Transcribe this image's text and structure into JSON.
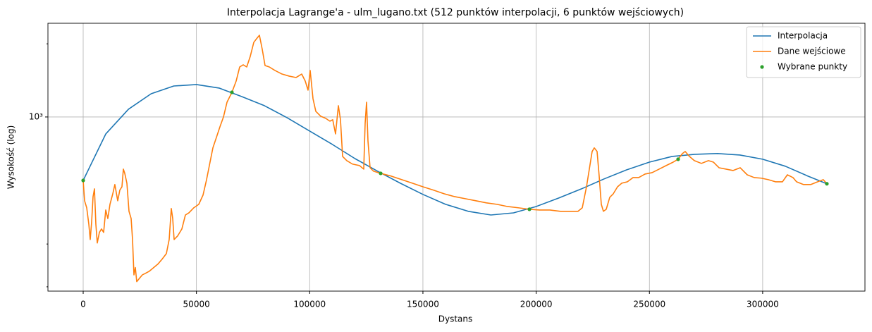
{
  "chart_data": {
    "type": "line",
    "title": "Interpolacja Lagrange'a - ulm_lugano.txt (512 punktów interpolacji, 6 punktów wejściowych)",
    "x_label": "Dystans",
    "y_label": "Wysokość (log)",
    "log_y": true,
    "grid": true,
    "legend": "upper right",
    "xlim": [
      -15560,
      345160
    ],
    "ylim": [
      192,
      2430
    ],
    "xticks": [
      0,
      50000,
      100000,
      150000,
      200000,
      250000,
      300000
    ],
    "yticks": [
      {
        "value": 1000,
        "label": "10³"
      }
    ],
    "yminorticks": [
      200,
      300,
      2000
    ],
    "series": [
      {
        "name": "Interpolacja",
        "color": "#1f77b4",
        "style": "line",
        "x": [
          0,
          10000,
          20000,
          30000,
          40000,
          50000,
          60000,
          70000,
          80000,
          90000,
          100000,
          110000,
          120000,
          130000,
          140000,
          150000,
          160000,
          170000,
          180000,
          190000,
          200000,
          210000,
          220000,
          230000,
          240000,
          250000,
          260000,
          270000,
          280000,
          290000,
          300000,
          310000,
          320000,
          328350
        ],
        "values": [
          548,
          852,
          1076,
          1246,
          1341,
          1360,
          1315,
          1213,
          1113,
          993,
          875,
          771,
          674,
          598,
          534,
          480,
          437,
          409,
          395,
          403,
          428,
          464,
          506,
          556,
          606,
          652,
          688,
          702,
          707,
          697,
          670,
          627,
          571,
          531
        ]
      },
      {
        "name": "Dane wejściowe",
        "color": "#ff7f0e",
        "style": "line",
        "x": [
          0,
          620,
          1560,
          2490,
          3110,
          3740,
          4360,
          4980,
          5600,
          6220,
          7160,
          8090,
          9030,
          9960,
          10890,
          11830,
          13070,
          13990,
          15250,
          16180,
          17120,
          17740,
          18360,
          19300,
          20230,
          21170,
          21790,
          22410,
          23030,
          23650,
          24900,
          26140,
          27390,
          29260,
          31120,
          32990,
          34860,
          36730,
          37970,
          38900,
          39530,
          40150,
          41710,
          43570,
          45130,
          46690,
          48860,
          51040,
          52910,
          54470,
          55710,
          57270,
          58830,
          60380,
          61940,
          63500,
          65670,
          67540,
          69100,
          70650,
          72210,
          73770,
          75330,
          76570,
          77810,
          79060,
          80300,
          82170,
          84660,
          87770,
          90880,
          93990,
          96480,
          98040,
          99280,
          100220,
          101460,
          102710,
          104880,
          107060,
          108930,
          110180,
          111420,
          112670,
          113600,
          114540,
          116400,
          118890,
          122000,
          123870,
          124490,
          125110,
          125740,
          126670,
          128230,
          131340,
          136010,
          140680,
          145350,
          150020,
          154690,
          159350,
          164020,
          168690,
          173360,
          178030,
          182700,
          187360,
          192030,
          197010,
          201370,
          206040,
          210710,
          215380,
          218490,
          220360,
          222220,
          223470,
          224710,
          225650,
          226890,
          227820,
          228760,
          229690,
          230940,
          232490,
          234050,
          235920,
          237790,
          240270,
          242760,
          245250,
          248050,
          251160,
          254280,
          257390,
          260500,
          262680,
          264550,
          265800,
          267660,
          269840,
          272950,
          276060,
          278240,
          280730,
          283840,
          286950,
          290070,
          293180,
          296290,
          299400,
          302510,
          305630,
          308740,
          310910,
          313400,
          314960,
          318070,
          321180,
          324290,
          326780,
          328350
        ],
        "values": [
          548,
          452,
          423,
          362,
          313,
          370,
          470,
          506,
          362,
          303,
          335,
          346,
          335,
          414,
          382,
          437,
          483,
          527,
          452,
          500,
          516,
          610,
          586,
          534,
          409,
          382,
          313,
          224,
          240,
          210,
          217,
          224,
          227,
          232,
          240,
          248,
          260,
          274,
          313,
          420,
          382,
          313,
          324,
          346,
          395,
          403,
          423,
          437,
          477,
          552,
          631,
          746,
          824,
          911,
          1000,
          1150,
          1263,
          1405,
          1606,
          1639,
          1606,
          1776,
          2028,
          2099,
          2169,
          1898,
          1628,
          1606,
          1554,
          1502,
          1473,
          1453,
          1502,
          1405,
          1289,
          1554,
          1190,
          1055,
          1007,
          987,
          961,
          974,
          852,
          1113,
          974,
          688,
          661,
          640,
          631,
          610,
          942,
          1150,
          797,
          618,
          598,
          586,
          571,
          552,
          534,
          516,
          500,
          483,
          470,
          461,
          452,
          443,
          437,
          428,
          423,
          417,
          414,
          414,
          409,
          409,
          409,
          423,
          516,
          610,
          721,
          746,
          721,
          571,
          437,
          409,
          417,
          467,
          483,
          516,
          534,
          541,
          563,
          563,
          582,
          590,
          610,
          631,
          652,
          670,
          707,
          721,
          688,
          661,
          644,
          661,
          652,
          618,
          610,
          602,
          618,
          578,
          563,
          560,
          552,
          541,
          541,
          578,
          563,
          541,
          527,
          527,
          541,
          552,
          531
        ]
      },
      {
        "name": "Wybrane punkty",
        "color": "#2ca02c",
        "style": "points",
        "x": [
          0,
          65670,
          131340,
          197010,
          262680,
          328350
        ],
        "values": [
          548,
          1263,
          586,
          417,
          670,
          531
        ]
      }
    ]
  }
}
